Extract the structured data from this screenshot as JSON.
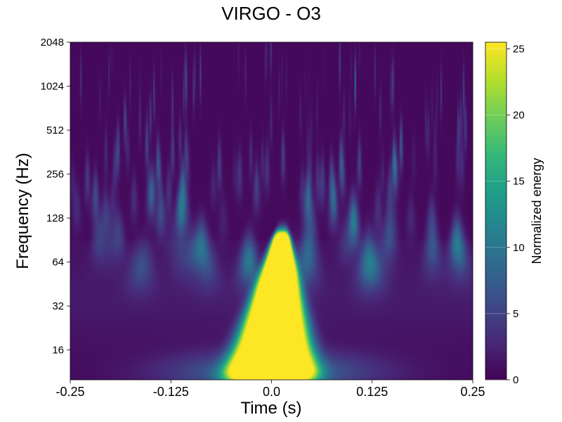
{
  "chart_data": {
    "type": "heatmap",
    "title": "VIRGO - O3",
    "xlabel": "Time (s)",
    "ylabel": "Frequency (Hz)",
    "colorbar_label": "Normalized energy",
    "xlim": [
      -0.25,
      0.25
    ],
    "ylim": [
      10,
      2048
    ],
    "y_scale": "log2",
    "x_ticks": [
      {
        "value": -0.25,
        "label": "-0.25"
      },
      {
        "value": -0.125,
        "label": "-0.125"
      },
      {
        "value": 0.0,
        "label": "0.0"
      },
      {
        "value": 0.125,
        "label": "0.125"
      },
      {
        "value": 0.25,
        "label": "0.25"
      }
    ],
    "y_ticks": [
      {
        "value": 16,
        "label": "16"
      },
      {
        "value": 32,
        "label": "32"
      },
      {
        "value": 64,
        "label": "64"
      },
      {
        "value": 128,
        "label": "128"
      },
      {
        "value": 256,
        "label": "256"
      },
      {
        "value": 512,
        "label": "512"
      },
      {
        "value": 1024,
        "label": "1024"
      },
      {
        "value": 2048,
        "label": "2048"
      }
    ],
    "colorbar_range": [
      0,
      25.5
    ],
    "colorbar_ticks": [
      {
        "value": 0,
        "label": "0"
      },
      {
        "value": 5,
        "label": "5"
      },
      {
        "value": 10,
        "label": "10"
      },
      {
        "value": 15,
        "label": "15"
      },
      {
        "value": 20,
        "label": "20"
      },
      {
        "value": 25,
        "label": "25"
      }
    ],
    "colormap": "viridis",
    "colormap_stops": [
      "#440154",
      "#482878",
      "#3e4989",
      "#31688e",
      "#26828e",
      "#1f9e89",
      "#35b779",
      "#6ece58",
      "#b5de2b",
      "#fde725"
    ],
    "grid": false,
    "event": {
      "peak_time": 0.0,
      "freq_low": 12,
      "freq_high": 90,
      "saturated_value": 25.5,
      "description_shape": "bright blob"
    }
  }
}
